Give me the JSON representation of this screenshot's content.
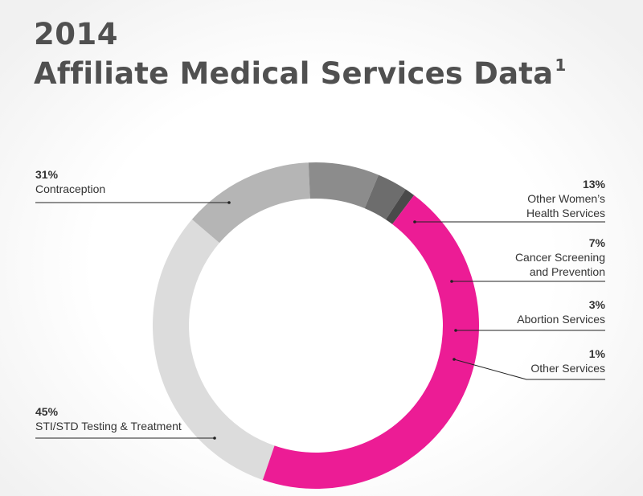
{
  "header": {
    "year": "2014",
    "title": "Affiliate Medical Services Data",
    "footnote_mark": "1"
  },
  "chart_data": {
    "type": "pie",
    "style": "donut",
    "categories": [
      "Contraception",
      "Other Women’s Health Services",
      "Cancer Screening and Prevention",
      "Abortion Services",
      "Other Services",
      "STI/STD Testing & Treatment"
    ],
    "values": [
      31,
      13,
      7,
      3,
      1,
      45
    ],
    "labels": [
      {
        "pct": "31%",
        "name": "Contraception"
      },
      {
        "pct": "13%",
        "name": "Other Women’s\nHealth Services"
      },
      {
        "pct": "7%",
        "name": "Cancer Screening\nand Prevention"
      },
      {
        "pct": "3%",
        "name": "Abortion Services"
      },
      {
        "pct": "1%",
        "name": "Other Services"
      },
      {
        "pct": "45%",
        "name": "STI/STD Testing & Treatment"
      }
    ],
    "colors": [
      "#dcdcdc",
      "#b5b5b5",
      "#8c8c8c",
      "#6d6d6d",
      "#4a4a4a",
      "#ec1c95"
    ]
  }
}
